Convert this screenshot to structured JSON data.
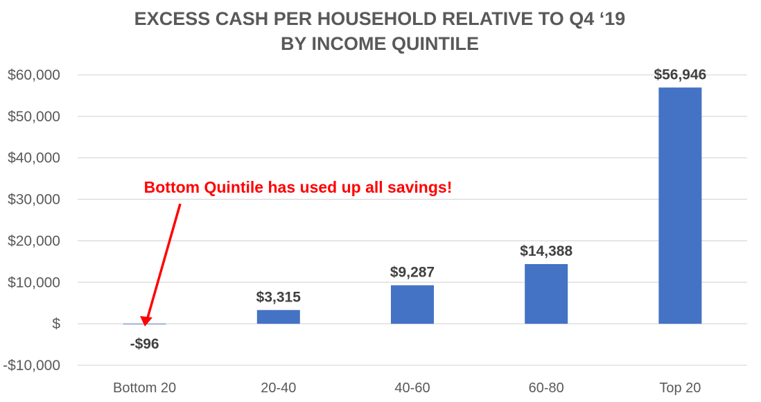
{
  "chart_data": {
    "type": "bar",
    "title_lines": [
      "EXCESS CASH PER HOUSEHOLD RELATIVE TO Q4 ‘19",
      "BY INCOME QUINTILE"
    ],
    "categories": [
      "Bottom 20",
      "20-40",
      "40-60",
      "60-80",
      "Top 20"
    ],
    "values": [
      -96,
      3315,
      9287,
      14388,
      56946
    ],
    "data_labels": [
      "-$96",
      "$3,315",
      "$9,287",
      "$14,388",
      "$56,946"
    ],
    "ylim": [
      -10000,
      60000
    ],
    "yticks": [
      -10000,
      0,
      10000,
      20000,
      30000,
      40000,
      50000,
      60000
    ],
    "ytick_labels": [
      "-$10,000",
      "$",
      "$10,000",
      "$20,000",
      "$30,000",
      "$40,000",
      "$50,000",
      "$60,000"
    ],
    "grid": true,
    "bar_color": "#4472C4",
    "annotation": {
      "text": "Bottom Quintile has used up all savings!",
      "color": "#FF0000",
      "points_to_category": "Bottom 20"
    }
  }
}
